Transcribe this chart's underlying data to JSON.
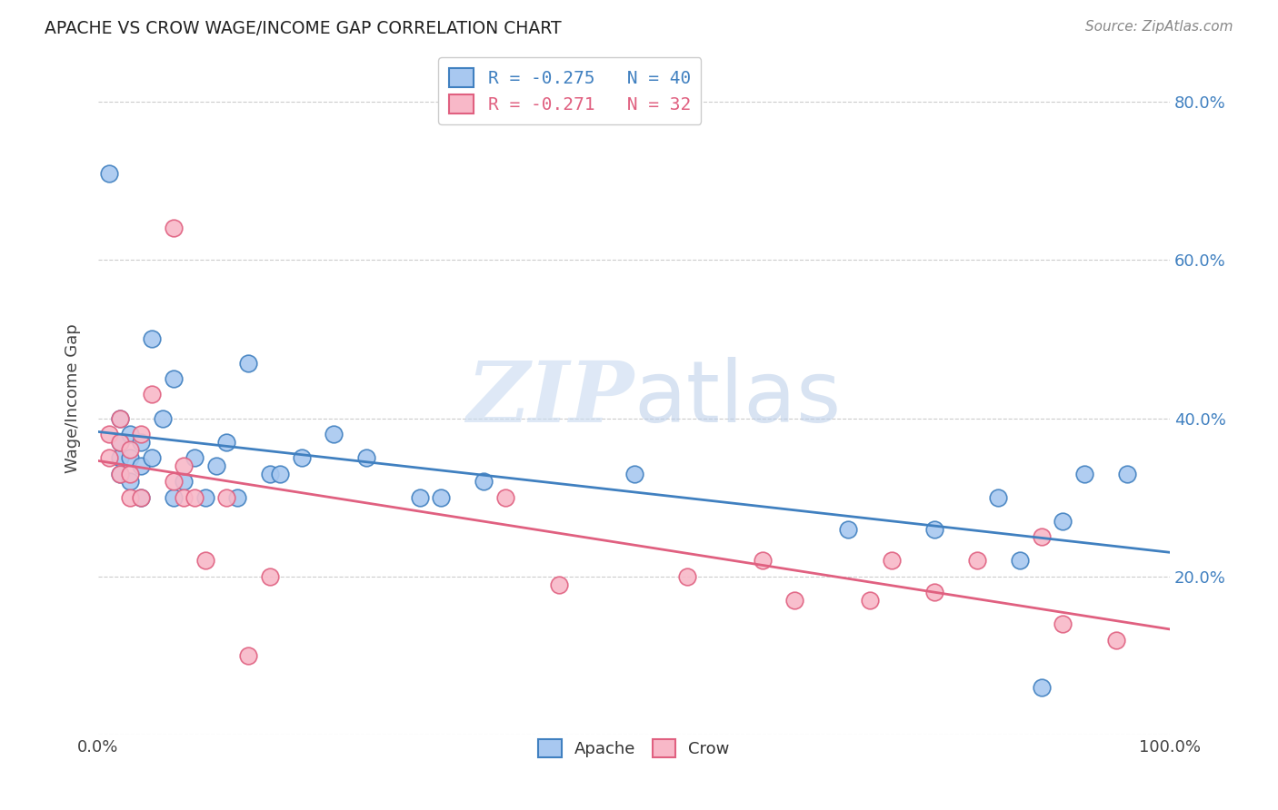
{
  "title": "APACHE VS CROW WAGE/INCOME GAP CORRELATION CHART",
  "source": "Source: ZipAtlas.com",
  "xlabel": "",
  "ylabel": "Wage/Income Gap",
  "xlim": [
    0,
    1.0
  ],
  "ylim": [
    0,
    0.85
  ],
  "xtick_labels": [
    "0.0%",
    "",
    "",
    "",
    "",
    "100.0%"
  ],
  "ytick_labels_right": [
    "",
    "20.0%",
    "40.0%",
    "60.0%",
    "80.0%"
  ],
  "apache_color": "#a8c8f0",
  "crow_color": "#f8b8c8",
  "apache_line_color": "#4080c0",
  "crow_line_color": "#e06080",
  "legend_apache": "R = -0.275   N = 40",
  "legend_crow": "R = -0.271   N = 32",
  "watermark_zip": "ZIP",
  "watermark_atlas": "atlas",
  "apache_x": [
    0.01,
    0.02,
    0.02,
    0.02,
    0.02,
    0.03,
    0.03,
    0.03,
    0.04,
    0.04,
    0.04,
    0.05,
    0.05,
    0.06,
    0.07,
    0.07,
    0.08,
    0.09,
    0.1,
    0.11,
    0.12,
    0.13,
    0.14,
    0.16,
    0.17,
    0.19,
    0.22,
    0.25,
    0.3,
    0.32,
    0.36,
    0.5,
    0.7,
    0.78,
    0.84,
    0.86,
    0.88,
    0.9,
    0.92,
    0.96
  ],
  "apache_y": [
    0.71,
    0.33,
    0.35,
    0.37,
    0.4,
    0.32,
    0.35,
    0.38,
    0.3,
    0.34,
    0.37,
    0.35,
    0.5,
    0.4,
    0.3,
    0.45,
    0.32,
    0.35,
    0.3,
    0.34,
    0.37,
    0.3,
    0.47,
    0.33,
    0.33,
    0.35,
    0.38,
    0.35,
    0.3,
    0.3,
    0.32,
    0.33,
    0.26,
    0.26,
    0.3,
    0.22,
    0.06,
    0.27,
    0.33,
    0.33
  ],
  "crow_x": [
    0.01,
    0.01,
    0.02,
    0.02,
    0.02,
    0.03,
    0.03,
    0.03,
    0.04,
    0.04,
    0.05,
    0.07,
    0.07,
    0.08,
    0.08,
    0.09,
    0.1,
    0.12,
    0.14,
    0.16,
    0.38,
    0.43,
    0.55,
    0.62,
    0.65,
    0.72,
    0.74,
    0.78,
    0.82,
    0.88,
    0.9,
    0.95
  ],
  "crow_y": [
    0.35,
    0.38,
    0.33,
    0.37,
    0.4,
    0.3,
    0.33,
    0.36,
    0.3,
    0.38,
    0.43,
    0.32,
    0.64,
    0.3,
    0.34,
    0.3,
    0.22,
    0.3,
    0.1,
    0.2,
    0.3,
    0.19,
    0.2,
    0.22,
    0.17,
    0.17,
    0.22,
    0.18,
    0.22,
    0.25,
    0.14,
    0.12
  ]
}
